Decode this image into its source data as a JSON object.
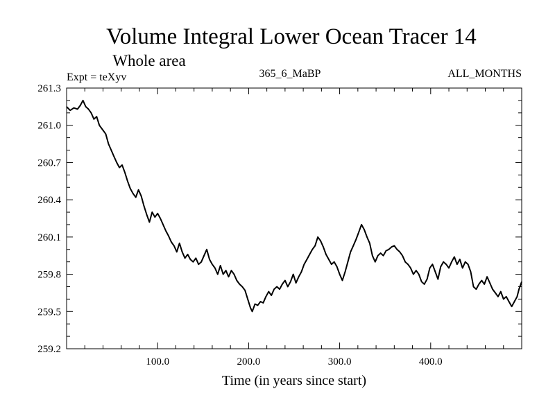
{
  "chart_data": {
    "type": "line",
    "title": "Volume Integral Lower Ocean Tracer 14",
    "subtitle": "Whole area",
    "expt_label": "Expt = teXyv",
    "center_label": "365_6_MaBP",
    "right_label": "ALL_MONTHS",
    "xlabel": "Time (in years since start)",
    "ylabel": "",
    "xlim": [
      0,
      500
    ],
    "ylim": [
      259.2,
      261.3
    ],
    "xticks": [
      100,
      200,
      300,
      400
    ],
    "xtick_labels": [
      "100.0",
      "200.0",
      "300.0",
      "400.0"
    ],
    "yticks": [
      259.2,
      259.5,
      259.8,
      260.1,
      260.4,
      260.7,
      261.0,
      261.3
    ],
    "ytick_labels": [
      "259.2",
      "259.5",
      "259.8",
      "260.1",
      "260.4",
      "260.7",
      "261.0",
      "261.3"
    ],
    "grid": false,
    "series": [
      {
        "color": "#000000",
        "points": [
          [
            0,
            261.15
          ],
          [
            4,
            261.12
          ],
          [
            8,
            261.14
          ],
          [
            12,
            261.13
          ],
          [
            15,
            261.16
          ],
          [
            18,
            261.2
          ],
          [
            21,
            261.15
          ],
          [
            24,
            261.13
          ],
          [
            27,
            261.1
          ],
          [
            30,
            261.05
          ],
          [
            33,
            261.07
          ],
          [
            36,
            261.0
          ],
          [
            40,
            260.96
          ],
          [
            43,
            260.93
          ],
          [
            46,
            260.85
          ],
          [
            49,
            260.8
          ],
          [
            52,
            260.75
          ],
          [
            55,
            260.7
          ],
          [
            58,
            260.66
          ],
          [
            61,
            260.68
          ],
          [
            64,
            260.62
          ],
          [
            67,
            260.55
          ],
          [
            70,
            260.49
          ],
          [
            73,
            260.45
          ],
          [
            76,
            260.42
          ],
          [
            79,
            260.48
          ],
          [
            82,
            260.43
          ],
          [
            85,
            260.35
          ],
          [
            88,
            260.28
          ],
          [
            91,
            260.22
          ],
          [
            94,
            260.3
          ],
          [
            97,
            260.26
          ],
          [
            100,
            260.29
          ],
          [
            103,
            260.25
          ],
          [
            106,
            260.2
          ],
          [
            109,
            260.15
          ],
          [
            112,
            260.11
          ],
          [
            115,
            260.06
          ],
          [
            118,
            260.03
          ],
          [
            121,
            259.98
          ],
          [
            124,
            260.05
          ],
          [
            127,
            259.98
          ],
          [
            130,
            259.93
          ],
          [
            133,
            259.96
          ],
          [
            136,
            259.92
          ],
          [
            139,
            259.9
          ],
          [
            142,
            259.93
          ],
          [
            145,
            259.88
          ],
          [
            148,
            259.9
          ],
          [
            151,
            259.95
          ],
          [
            154,
            260.0
          ],
          [
            157,
            259.92
          ],
          [
            160,
            259.88
          ],
          [
            163,
            259.85
          ],
          [
            166,
            259.8
          ],
          [
            169,
            259.87
          ],
          [
            172,
            259.8
          ],
          [
            175,
            259.83
          ],
          [
            178,
            259.78
          ],
          [
            181,
            259.83
          ],
          [
            184,
            259.8
          ],
          [
            187,
            259.75
          ],
          [
            190,
            259.72
          ],
          [
            193,
            259.7
          ],
          [
            196,
            259.67
          ],
          [
            199,
            259.6
          ],
          [
            202,
            259.53
          ],
          [
            204,
            259.5
          ],
          [
            207,
            259.56
          ],
          [
            210,
            259.55
          ],
          [
            213,
            259.58
          ],
          [
            216,
            259.57
          ],
          [
            219,
            259.62
          ],
          [
            222,
            259.66
          ],
          [
            225,
            259.63
          ],
          [
            228,
            259.68
          ],
          [
            231,
            259.7
          ],
          [
            234,
            259.68
          ],
          [
            237,
            259.72
          ],
          [
            240,
            259.75
          ],
          [
            243,
            259.7
          ],
          [
            246,
            259.74
          ],
          [
            249,
            259.8
          ],
          [
            252,
            259.73
          ],
          [
            255,
            259.78
          ],
          [
            258,
            259.82
          ],
          [
            261,
            259.88
          ],
          [
            264,
            259.92
          ],
          [
            267,
            259.96
          ],
          [
            270,
            260.0
          ],
          [
            273,
            260.03
          ],
          [
            276,
            260.1
          ],
          [
            279,
            260.07
          ],
          [
            282,
            260.02
          ],
          [
            285,
            259.96
          ],
          [
            288,
            259.92
          ],
          [
            291,
            259.88
          ],
          [
            294,
            259.9
          ],
          [
            297,
            259.86
          ],
          [
            300,
            259.8
          ],
          [
            303,
            259.75
          ],
          [
            306,
            259.82
          ],
          [
            309,
            259.9
          ],
          [
            312,
            259.98
          ],
          [
            315,
            260.03
          ],
          [
            318,
            260.08
          ],
          [
            321,
            260.14
          ],
          [
            324,
            260.2
          ],
          [
            327,
            260.16
          ],
          [
            330,
            260.1
          ],
          [
            333,
            260.05
          ],
          [
            336,
            259.95
          ],
          [
            339,
            259.9
          ],
          [
            342,
            259.95
          ],
          [
            345,
            259.97
          ],
          [
            348,
            259.95
          ],
          [
            351,
            259.99
          ],
          [
            354,
            260.0
          ],
          [
            357,
            260.02
          ],
          [
            360,
            260.03
          ],
          [
            363,
            260.0
          ],
          [
            366,
            259.98
          ],
          [
            369,
            259.95
          ],
          [
            372,
            259.9
          ],
          [
            375,
            259.88
          ],
          [
            378,
            259.85
          ],
          [
            381,
            259.8
          ],
          [
            384,
            259.83
          ],
          [
            387,
            259.8
          ],
          [
            390,
            259.74
          ],
          [
            393,
            259.72
          ],
          [
            396,
            259.76
          ],
          [
            399,
            259.85
          ],
          [
            402,
            259.88
          ],
          [
            405,
            259.82
          ],
          [
            408,
            259.76
          ],
          [
            411,
            259.86
          ],
          [
            414,
            259.9
          ],
          [
            417,
            259.88
          ],
          [
            420,
            259.85
          ],
          [
            423,
            259.9
          ],
          [
            426,
            259.94
          ],
          [
            429,
            259.88
          ],
          [
            432,
            259.92
          ],
          [
            435,
            259.85
          ],
          [
            438,
            259.9
          ],
          [
            441,
            259.88
          ],
          [
            444,
            259.82
          ],
          [
            447,
            259.7
          ],
          [
            450,
            259.68
          ],
          [
            453,
            259.72
          ],
          [
            456,
            259.75
          ],
          [
            459,
            259.72
          ],
          [
            462,
            259.78
          ],
          [
            465,
            259.73
          ],
          [
            468,
            259.68
          ],
          [
            471,
            259.65
          ],
          [
            474,
            259.62
          ],
          [
            477,
            259.66
          ],
          [
            480,
            259.6
          ],
          [
            483,
            259.62
          ],
          [
            486,
            259.58
          ],
          [
            489,
            259.54
          ],
          [
            492,
            259.58
          ],
          [
            495,
            259.62
          ],
          [
            497,
            259.68
          ],
          [
            500,
            259.74
          ]
        ]
      }
    ]
  }
}
